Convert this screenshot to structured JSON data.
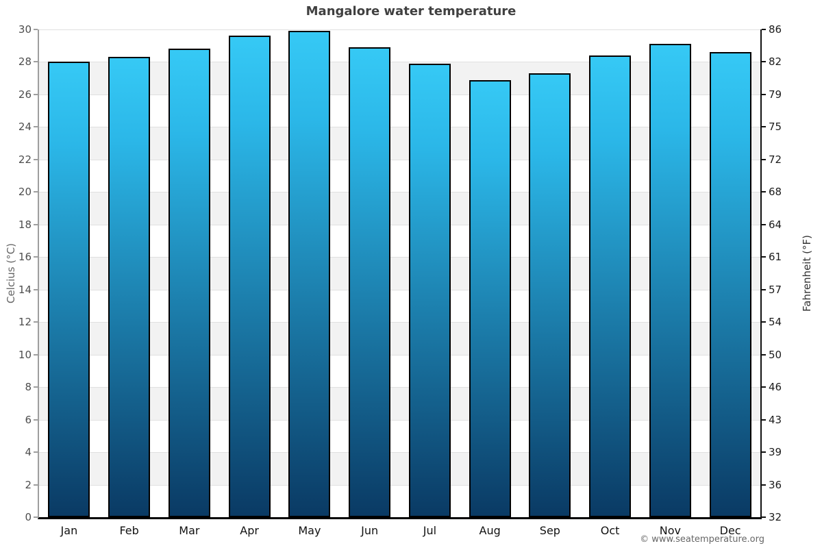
{
  "page": {
    "title": "Mangalore water temperature",
    "footer": "© www.seatemperature.org"
  },
  "chart_data": {
    "type": "bar",
    "title": "Mangalore water temperature",
    "categories": [
      "Jan",
      "Feb",
      "Mar",
      "Apr",
      "May",
      "Jun",
      "Jul",
      "Aug",
      "Sep",
      "Oct",
      "Nov",
      "Dec"
    ],
    "values": [
      28.0,
      28.3,
      28.8,
      29.6,
      29.9,
      28.9,
      27.9,
      26.9,
      27.3,
      28.4,
      29.1,
      28.6
    ],
    "unit": "°C",
    "ylabel_left": "Celcius (°C)",
    "ylabel_right": "Fahrenheit (°F)",
    "ylim": [
      0,
      30
    ],
    "celsius_ticks": [
      30,
      28,
      26,
      24,
      22,
      20,
      18,
      16,
      14,
      12,
      10,
      8,
      6,
      4,
      2,
      0
    ],
    "fahrenheit_tick_labels": [
      86,
      82,
      79,
      75,
      72,
      68,
      64,
      61,
      57,
      54,
      50,
      46,
      43,
      39,
      36,
      32
    ],
    "legend_position": "none",
    "grid": "horizontal bands alternating white/gray every 2°C",
    "colors": {
      "bar_top": "#36c9f5",
      "bar_bottom": "#0a3a64",
      "bar_border": "#000000",
      "band": "#f2f2f2",
      "gridline": "#e0e0e0",
      "title_text": "#404040",
      "left_axis_text": "#4d4d4d",
      "right_axis_text": "#1a1a1a",
      "footer_text": "#666666"
    }
  }
}
